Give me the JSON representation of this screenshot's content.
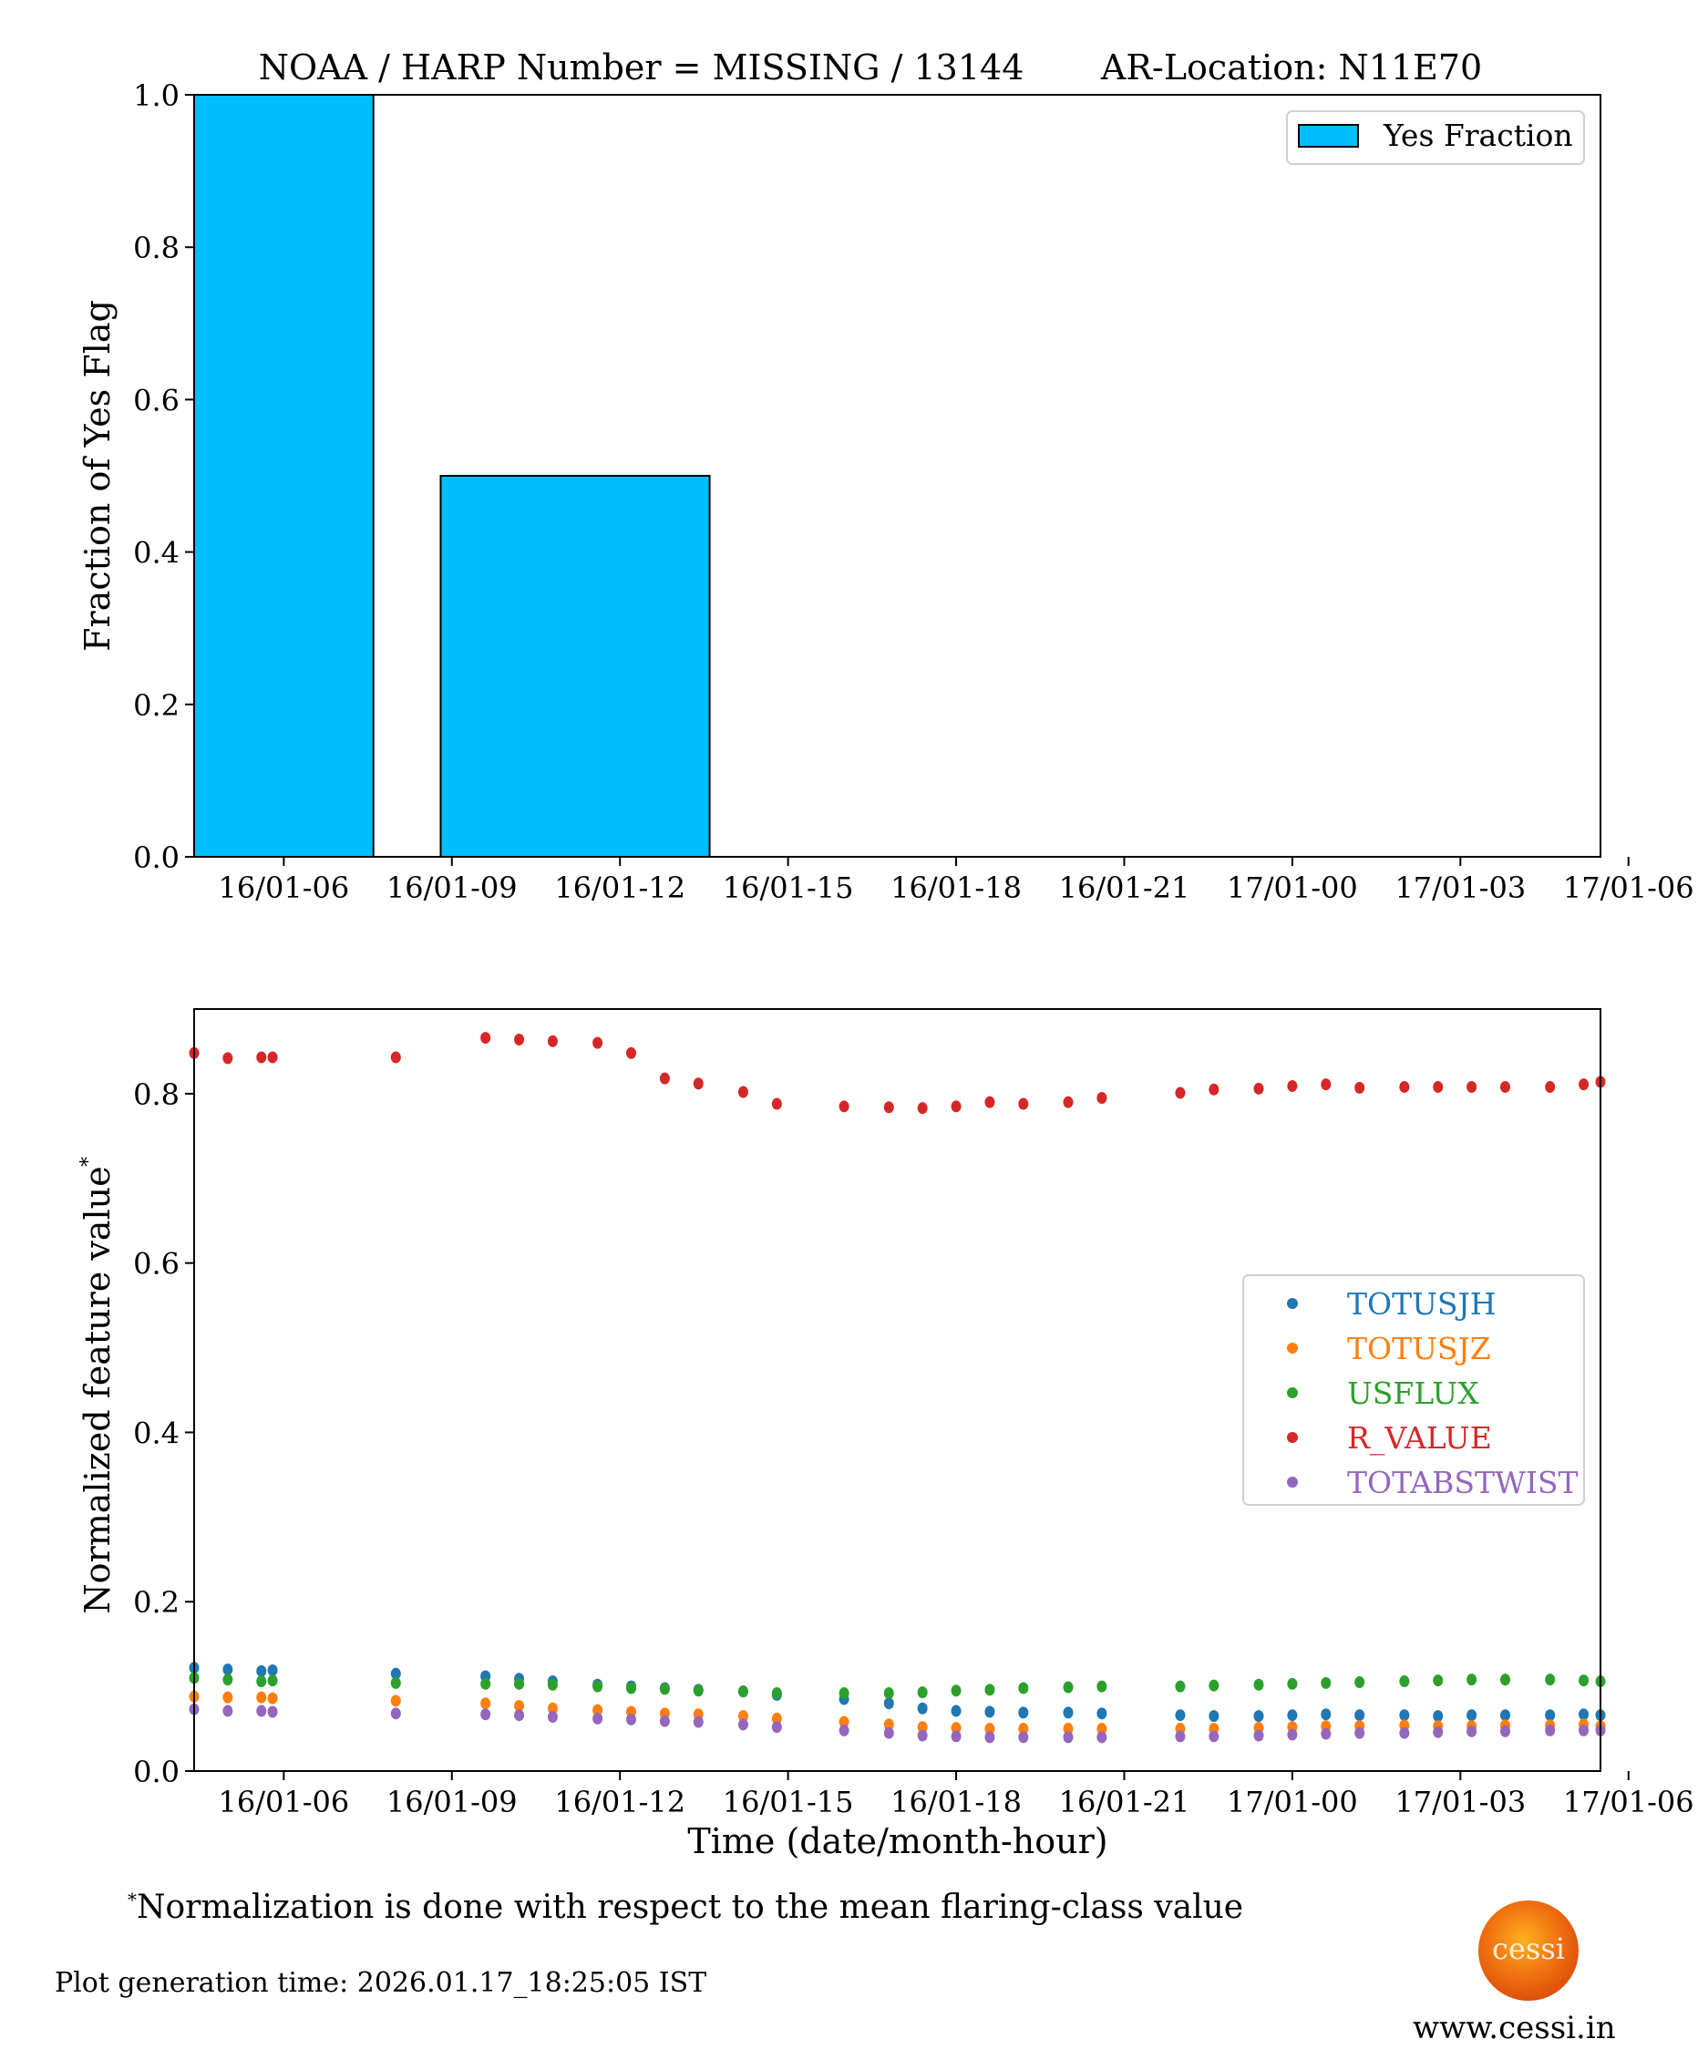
{
  "title": "NOAA / HARP Number = MISSING / 13144       AR-Location: N11E70",
  "footnote": "Normalization is done with respect to the mean flaring-class value",
  "footnote_mark": "*",
  "generation_time": "Plot generation time: 2026.01.17_18:25:05 IST",
  "logo_text": "cessi",
  "website": "www.cessi.in",
  "chart_data": [
    {
      "type": "bar",
      "ylabel": "Fraction of Yes Flag",
      "xlabel": "",
      "ylim": [
        0,
        1.0
      ],
      "yticks": [
        "0.0",
        "0.2",
        "0.4",
        "0.6",
        "0.8",
        "1.0"
      ],
      "xlim_hours": [
        4.4,
        29.5
      ],
      "xticks": [
        {
          "label": "16/01-06",
          "hour": 6
        },
        {
          "label": "16/01-09",
          "hour": 9
        },
        {
          "label": "16/01-12",
          "hour": 12
        },
        {
          "label": "16/01-15",
          "hour": 15
        },
        {
          "label": "16/01-18",
          "hour": 18
        },
        {
          "label": "16/01-21",
          "hour": 21
        },
        {
          "label": "17/01-00",
          "hour": 24
        },
        {
          "label": "17/01-03",
          "hour": 27
        },
        {
          "label": "17/01-06",
          "hour": 30
        }
      ],
      "bars": [
        {
          "start_hour": 4.4,
          "end_hour": 7.6,
          "value": 1.0
        },
        {
          "start_hour": 8.8,
          "end_hour": 13.6,
          "value": 0.5
        }
      ],
      "legend": [
        "Yes Fraction"
      ],
      "legend_position": "top-right",
      "color": "#00bfff"
    },
    {
      "type": "scatter",
      "xlabel": "Time (date/month-hour)",
      "ylabel": "Normalized feature value",
      "ylabel_mark": "*",
      "ylim": [
        0,
        0.9
      ],
      "yticks": [
        "0.0",
        "0.2",
        "0.4",
        "0.6",
        "0.8"
      ],
      "xlim_hours": [
        4.4,
        29.5
      ],
      "xticks": [
        {
          "label": "16/01-06",
          "hour": 6
        },
        {
          "label": "16/01-09",
          "hour": 9
        },
        {
          "label": "16/01-12",
          "hour": 12
        },
        {
          "label": "16/01-15",
          "hour": 15
        },
        {
          "label": "16/01-18",
          "hour": 18
        },
        {
          "label": "16/01-21",
          "hour": 21
        },
        {
          "label": "17/01-00",
          "hour": 24
        },
        {
          "label": "17/01-03",
          "hour": 27
        },
        {
          "label": "17/01-06",
          "hour": 30
        }
      ],
      "legend_position": "center-right",
      "x_hours": [
        4.4,
        5.0,
        5.6,
        5.8,
        8.0,
        9.6,
        10.2,
        10.8,
        11.6,
        12.2,
        12.8,
        13.4,
        14.2,
        14.8,
        16.0,
        16.8,
        17.4,
        18.0,
        18.6,
        19.2,
        20.0,
        20.6,
        22.0,
        22.6,
        23.4,
        24.0,
        24.6,
        25.2,
        26.0,
        26.6,
        27.2,
        27.8,
        28.6,
        29.2,
        29.5
      ],
      "series": [
        {
          "name": "TOTUSJH",
          "color": "#1f77b4",
          "values": [
            0.122,
            0.12,
            0.118,
            0.119,
            0.115,
            0.112,
            0.109,
            0.106,
            0.102,
            0.1,
            0.098,
            0.096,
            0.094,
            0.09,
            0.085,
            0.08,
            0.074,
            0.071,
            0.07,
            0.069,
            0.069,
            0.068,
            0.066,
            0.065,
            0.065,
            0.066,
            0.067,
            0.066,
            0.066,
            0.065,
            0.066,
            0.066,
            0.066,
            0.067,
            0.066
          ]
        },
        {
          "name": "TOTUSJZ",
          "color": "#ff7f0e",
          "values": [
            0.088,
            0.087,
            0.087,
            0.086,
            0.083,
            0.08,
            0.077,
            0.074,
            0.072,
            0.07,
            0.068,
            0.067,
            0.065,
            0.062,
            0.058,
            0.055,
            0.052,
            0.051,
            0.05,
            0.05,
            0.05,
            0.05,
            0.05,
            0.05,
            0.051,
            0.052,
            0.053,
            0.053,
            0.054,
            0.053,
            0.053,
            0.054,
            0.054,
            0.055,
            0.053
          ]
        },
        {
          "name": "USFLUX",
          "color": "#2ca02c",
          "values": [
            0.11,
            0.108,
            0.106,
            0.107,
            0.104,
            0.103,
            0.103,
            0.102,
            0.1,
            0.098,
            0.097,
            0.095,
            0.094,
            0.092,
            0.092,
            0.092,
            0.093,
            0.095,
            0.096,
            0.098,
            0.099,
            0.1,
            0.1,
            0.101,
            0.102,
            0.103,
            0.104,
            0.105,
            0.106,
            0.107,
            0.108,
            0.108,
            0.108,
            0.107,
            0.106
          ]
        },
        {
          "name": "R_VALUE",
          "color": "#d62728",
          "values": [
            0.848,
            0.842,
            0.843,
            0.843,
            0.843,
            0.866,
            0.864,
            0.862,
            0.86,
            0.848,
            0.818,
            0.812,
            0.802,
            0.788,
            0.785,
            0.784,
            0.783,
            0.785,
            0.79,
            0.788,
            0.79,
            0.795,
            0.801,
            0.805,
            0.806,
            0.809,
            0.811,
            0.807,
            0.808,
            0.808,
            0.808,
            0.808,
            0.808,
            0.811,
            0.814
          ]
        },
        {
          "name": "TOTABSTWIST",
          "color": "#9467bd",
          "values": [
            0.073,
            0.071,
            0.071,
            0.07,
            0.068,
            0.067,
            0.066,
            0.064,
            0.062,
            0.061,
            0.059,
            0.058,
            0.055,
            0.052,
            0.048,
            0.045,
            0.042,
            0.041,
            0.04,
            0.04,
            0.04,
            0.04,
            0.041,
            0.041,
            0.042,
            0.043,
            0.044,
            0.045,
            0.045,
            0.046,
            0.047,
            0.047,
            0.048,
            0.048,
            0.048
          ]
        }
      ]
    }
  ]
}
